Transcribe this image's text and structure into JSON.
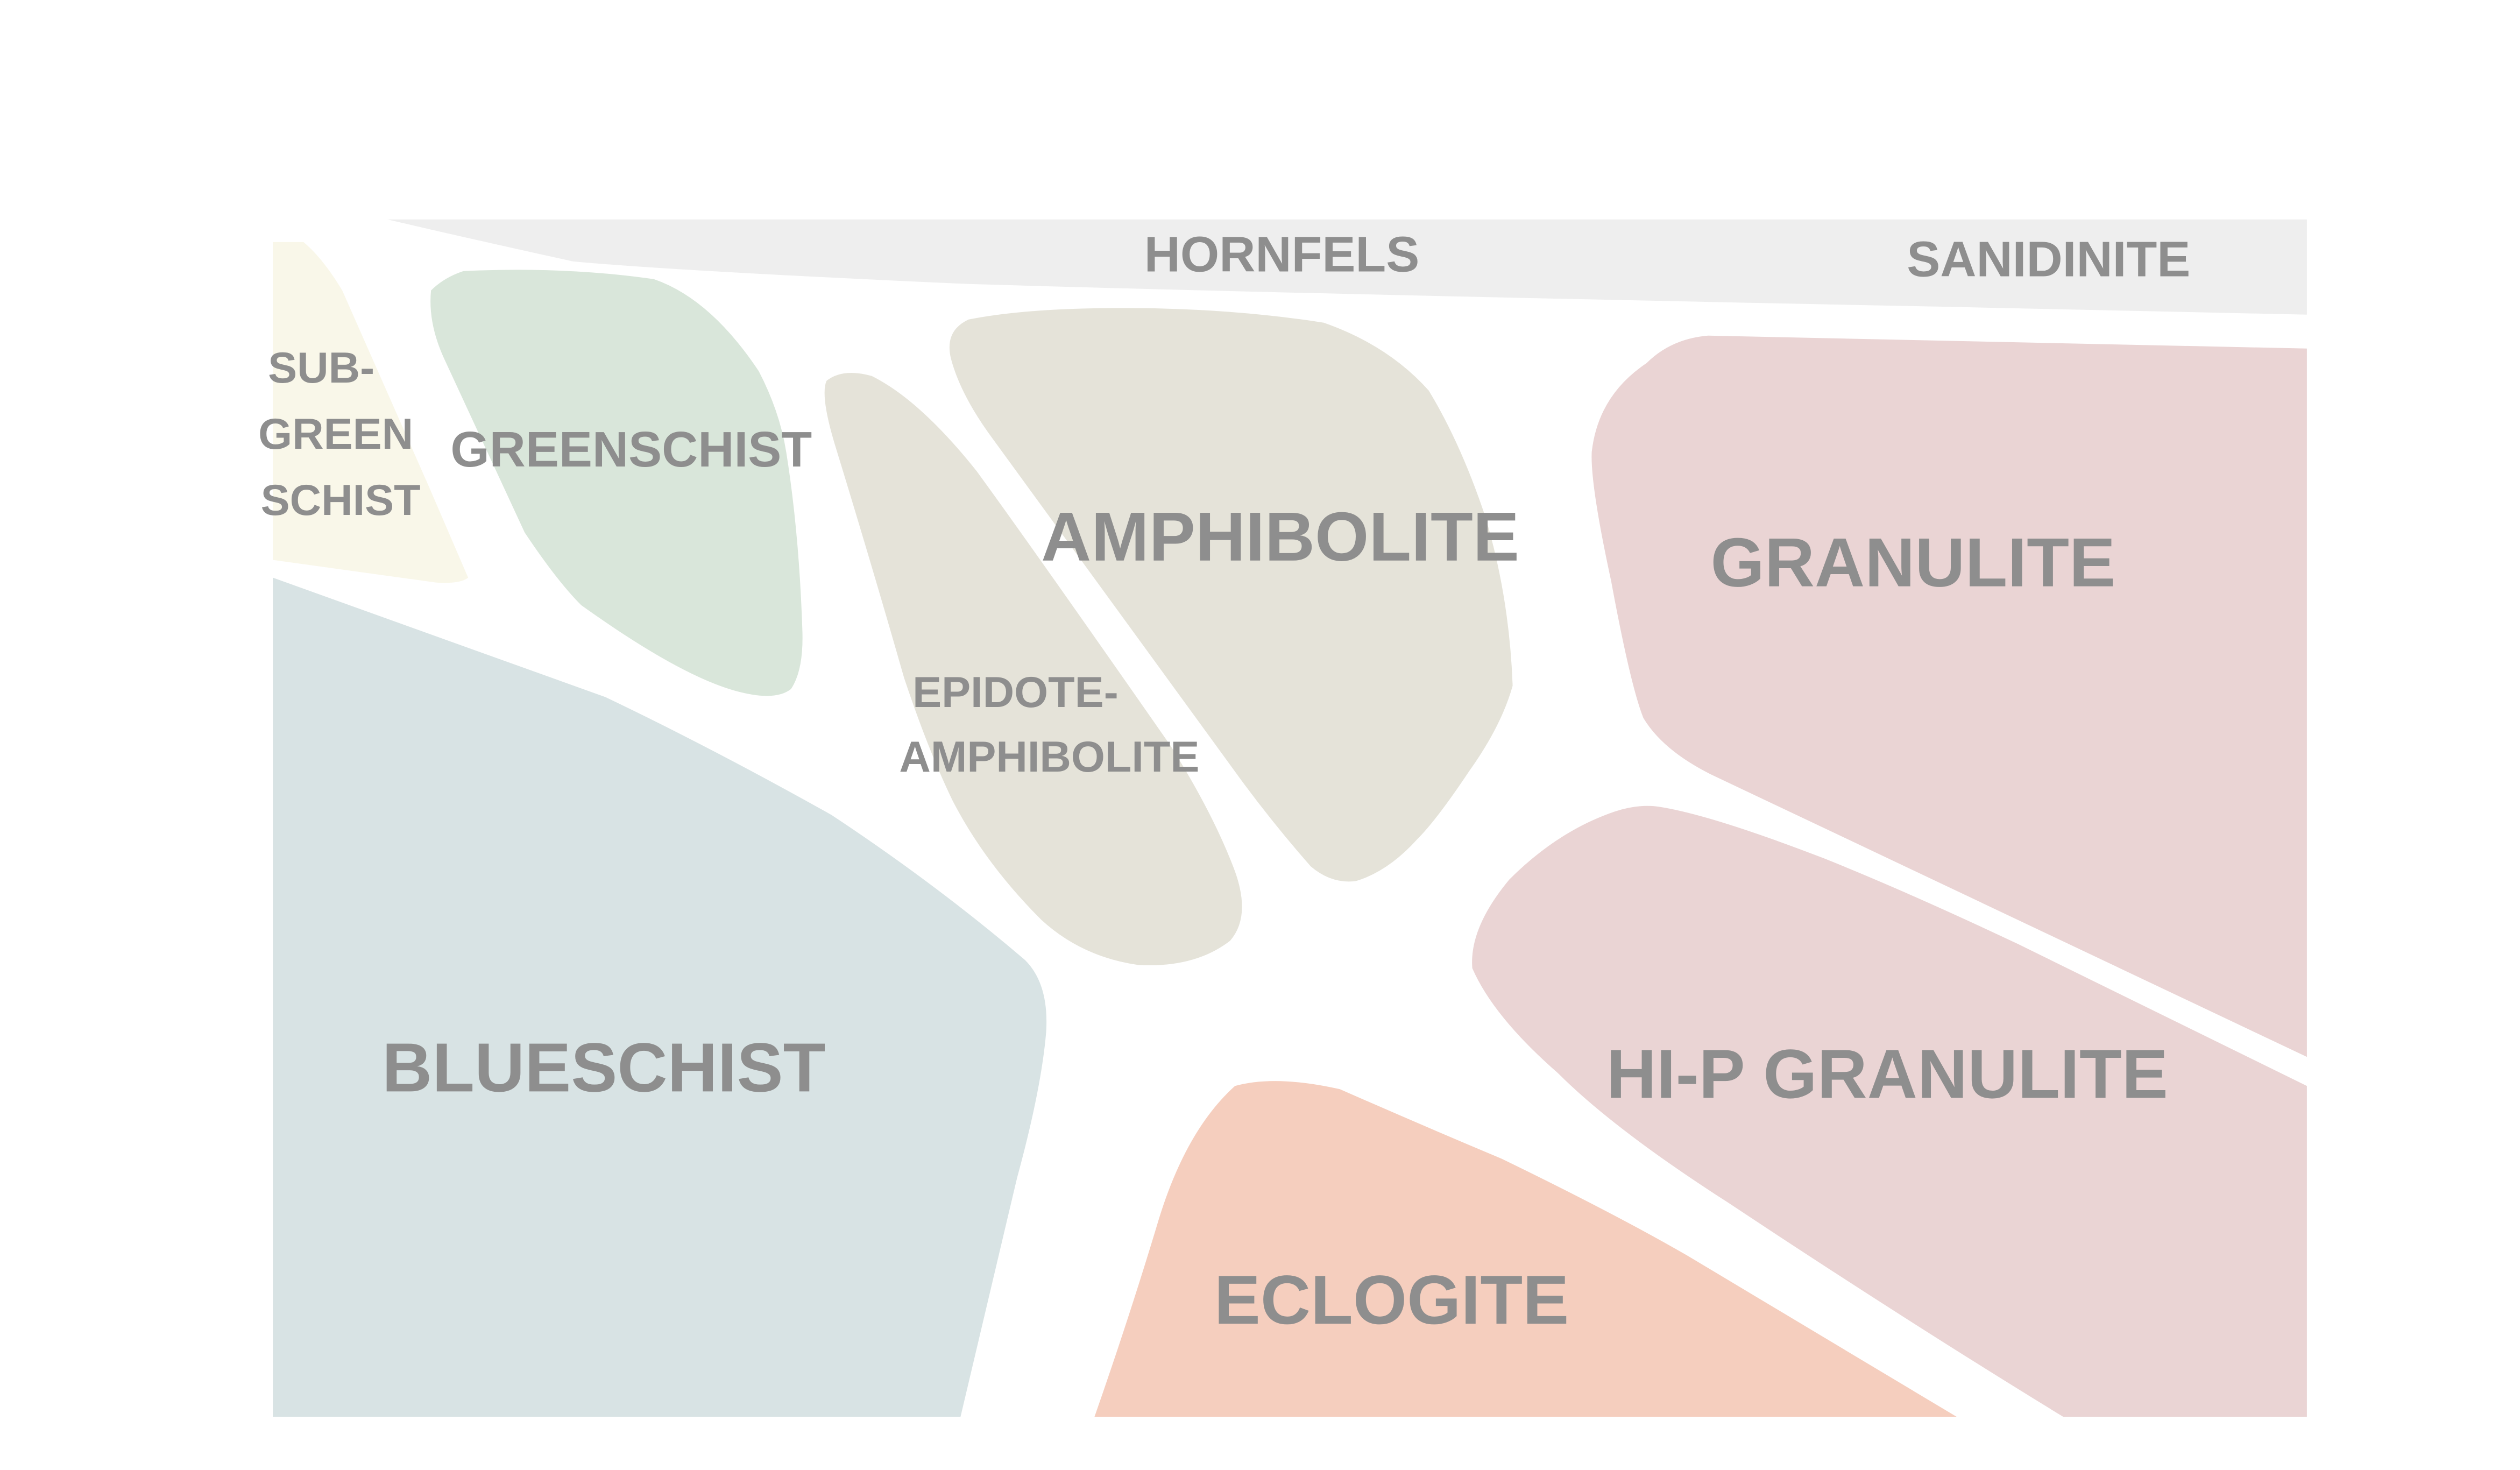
{
  "facies": {
    "hornfels": {
      "label": "HORNFELS",
      "color": "#eeeeee"
    },
    "sanidinite": {
      "label": "SANIDINITE"
    },
    "subgreenschist": {
      "lines": [
        "SUB-",
        "GREEN",
        "SCHIST"
      ],
      "color": "#f9f7e9"
    },
    "greenschist": {
      "label": "GREENSCHIST",
      "color": "#d9e6da"
    },
    "epidote_amphibolite": {
      "lines": [
        "EPIDOTE-",
        "AMPHIBOLITE"
      ],
      "color": "#e5e3d9"
    },
    "amphibolite": {
      "label": "AMPHIBOLITE",
      "color": "#e5e3d9"
    },
    "granulite": {
      "label": "GRANULITE",
      "color": "#ead4d4"
    },
    "blueschist": {
      "label": "BLUESCHIST",
      "color": "#d8e3e4"
    },
    "hip_granulite": {
      "label": "HI-P GRANULITE",
      "color": "#ead4d4"
    },
    "eclogite": {
      "label": "ECLOGITE",
      "color": "#f5cebe"
    }
  },
  "label_color": "#8e8e8e"
}
